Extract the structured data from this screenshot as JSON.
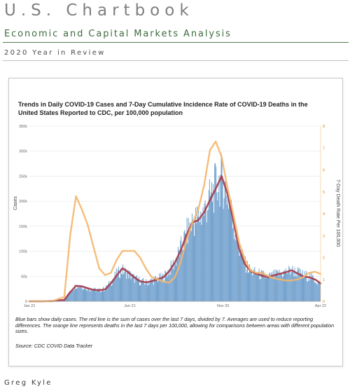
{
  "document": {
    "title": "U.S. Chartbook",
    "subtitle": "Economic and Capital Markets Analysis",
    "period": "2020 Year in Review",
    "author": "Greg Kyle"
  },
  "caption": "Blue bars show daily cases. The red line is the sum of cases over the last 7 days, divided by 7. Averages are used to reduce reporting differences. The orange line represents deaths in the last 7 days per 100,000, allowing for comparisons between areas with different population sizes.",
  "source": "Source: CDC COVID Data Tracker",
  "colors": {
    "bars": "#6f9fcd",
    "cases_avg": "#a33a4a",
    "deaths_rate": "#f4b66a"
  },
  "chart_data": {
    "type": "bar",
    "title_lines": [
      "Trends in Daily COVID-19 Cases and 7-Day Cumulative Incidence Rate of COVID-19 Deaths in the",
      "United States Reported to CDC, per 100,000 population"
    ],
    "ylabel_left": "Cases",
    "ylabel_right": "7-Day Death Rate Per 100,000",
    "ylim_left": [
      0,
      350000
    ],
    "ylim_right": [
      0,
      8
    ],
    "yticks_left": [
      {
        "v": 0,
        "label": "0"
      },
      {
        "v": 50000,
        "label": "50k"
      },
      {
        "v": 100000,
        "label": "100k"
      },
      {
        "v": 150000,
        "label": "150k"
      },
      {
        "v": 200000,
        "label": "200k"
      },
      {
        "v": 250000,
        "label": "250k"
      },
      {
        "v": 300000,
        "label": "300k"
      },
      {
        "v": 350000,
        "label": "350k"
      }
    ],
    "yticks_right": [
      0,
      1,
      2,
      3,
      4,
      5,
      6,
      7,
      8
    ],
    "xticks": [
      "Jan 22",
      "Jun 21",
      "Nov 20",
      "Apr 22"
    ],
    "grid": true,
    "series": [
      {
        "name": "Daily cases",
        "kind": "bar",
        "x": [
          0,
          4,
          8,
          12,
          14,
          16,
          18,
          20,
          22,
          24,
          26,
          28,
          30,
          32,
          34,
          36,
          38,
          40,
          42,
          44,
          46,
          48,
          50,
          52,
          54,
          56,
          58,
          60,
          62,
          64,
          66,
          68,
          70,
          72,
          74,
          76,
          78,
          80,
          82,
          84,
          86,
          88,
          90,
          92,
          94,
          96,
          98,
          100
        ],
        "values": [
          0,
          0,
          500,
          3000,
          18000,
          32000,
          30000,
          26000,
          23000,
          22000,
          25000,
          38000,
          55000,
          62000,
          55000,
          46000,
          40000,
          37000,
          41000,
          45000,
          48000,
          62000,
          78000,
          105000,
          135000,
          160000,
          165000,
          180000,
          205000,
          230000,
          245000,
          215000,
          160000,
          105000,
          75000,
          60000,
          56000,
          52000,
          48000,
          52000,
          55000,
          58000,
          62000,
          58000,
          52000,
          50000,
          44000,
          32000
        ]
      },
      {
        "name": "7-day average cases",
        "kind": "line",
        "x": [
          0,
          4,
          8,
          12,
          14,
          16,
          18,
          20,
          22,
          24,
          26,
          28,
          30,
          32,
          34,
          36,
          38,
          40,
          42,
          44,
          46,
          48,
          50,
          52,
          54,
          56,
          58,
          60,
          62,
          64,
          66,
          68,
          70,
          72,
          74,
          76,
          78,
          80,
          82,
          84,
          86,
          88,
          90,
          92,
          94,
          96,
          98,
          100
        ],
        "values": [
          0,
          0,
          500,
          3000,
          18000,
          31000,
          30000,
          26000,
          23000,
          22000,
          24000,
          36000,
          52000,
          66000,
          58000,
          48000,
          40000,
          38000,
          40000,
          44000,
          48000,
          60000,
          78000,
          102000,
          133000,
          158000,
          162000,
          178000,
          202000,
          225000,
          250000,
          215000,
          162000,
          105000,
          74000,
          60000,
          55000,
          51000,
          48000,
          52000,
          55000,
          58000,
          62000,
          56000,
          50000,
          48000,
          44000,
          36000
        ]
      },
      {
        "name": "7-day death rate per 100,000",
        "kind": "line",
        "axis": "right",
        "x": [
          0,
          4,
          8,
          12,
          14,
          16,
          18,
          20,
          22,
          24,
          26,
          28,
          30,
          32,
          34,
          36,
          38,
          40,
          42,
          44,
          46,
          48,
          50,
          52,
          54,
          56,
          58,
          60,
          62,
          64,
          66,
          68,
          70,
          72,
          74,
          76,
          78,
          80,
          82,
          84,
          86,
          88,
          90,
          92,
          94,
          96,
          98,
          100
        ],
        "values": [
          0,
          0,
          0.02,
          0.2,
          3.0,
          4.8,
          4.2,
          3.5,
          2.5,
          1.5,
          1.2,
          1.3,
          1.9,
          2.3,
          2.3,
          2.3,
          2.0,
          1.5,
          1.1,
          1.0,
          0.9,
          0.85,
          1.1,
          1.8,
          2.8,
          3.6,
          4.2,
          5.3,
          6.9,
          7.3,
          6.6,
          5.2,
          4.0,
          2.7,
          1.9,
          1.4,
          1.3,
          1.3,
          1.15,
          1.05,
          1.0,
          0.95,
          0.95,
          1.0,
          1.1,
          1.3,
          1.35,
          1.25
        ]
      }
    ]
  }
}
